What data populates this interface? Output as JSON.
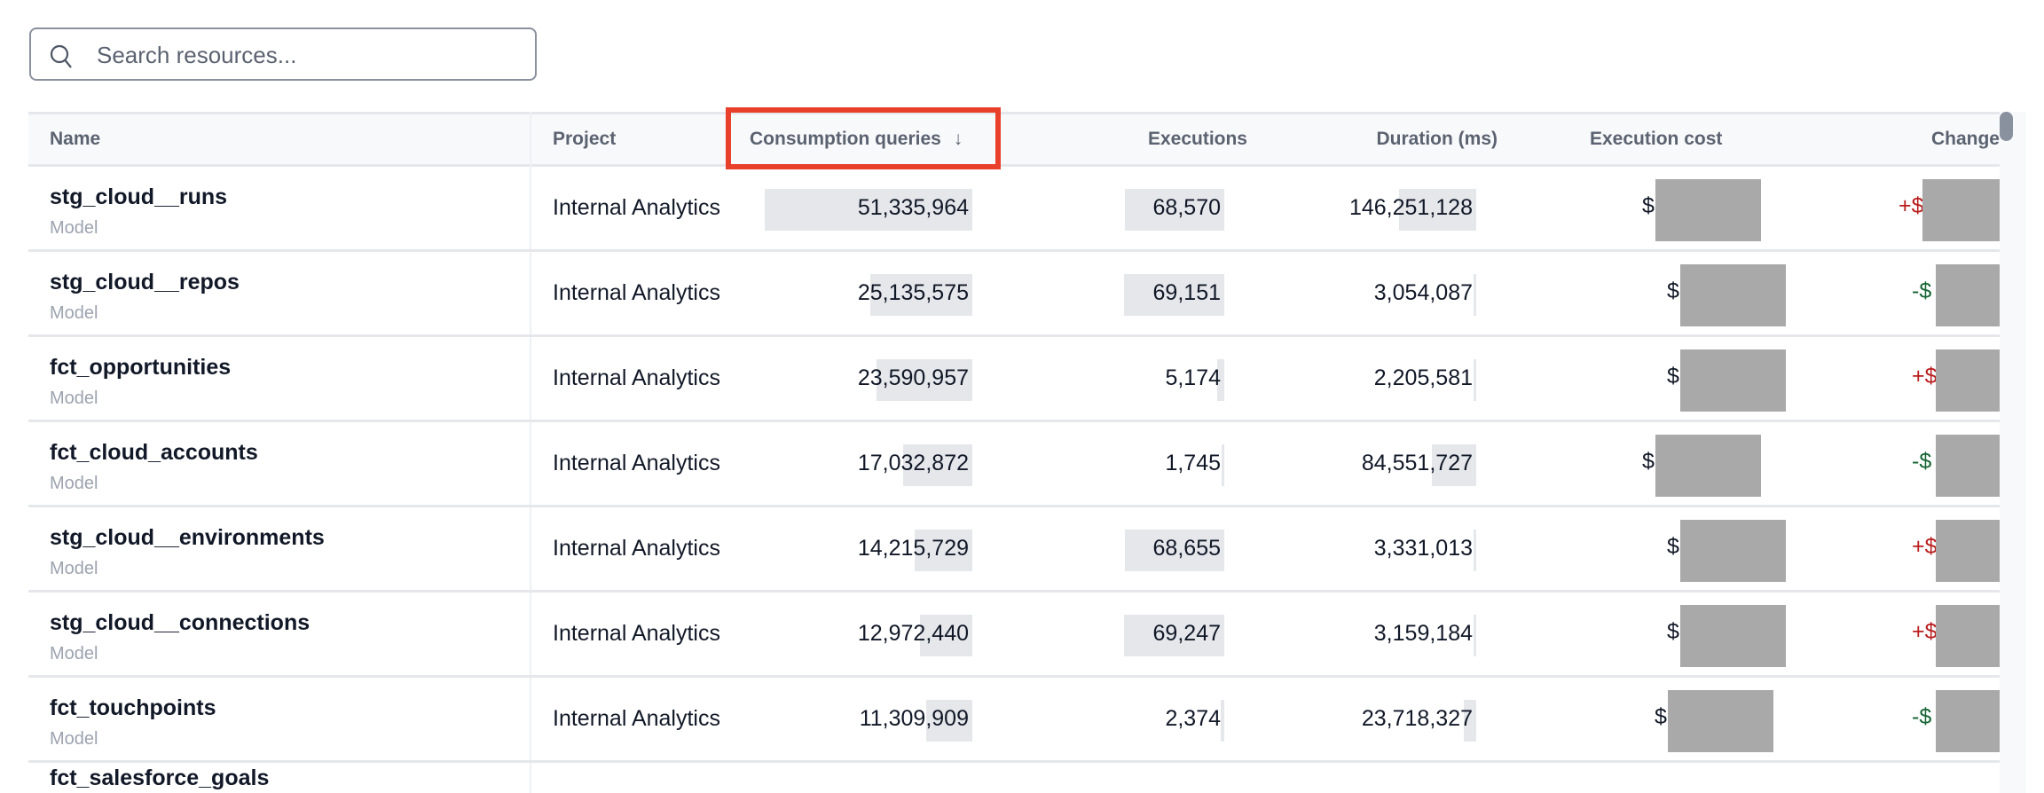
{
  "search": {
    "placeholder": "Search resources..."
  },
  "columns": {
    "name": "Name",
    "project": "Project",
    "consumption": "Consumption queries",
    "sort_icon": "↓",
    "executions": "Executions",
    "duration": "Duration (ms)",
    "cost": "Execution cost",
    "change": "Change"
  },
  "rows": [
    {
      "name": "stg_cloud__runs",
      "type": "Model",
      "project": "Internal Analytics",
      "consumption": "51,335,964",
      "consumption_value": 51335964,
      "executions": "68,570",
      "executions_value": 68570,
      "duration": "146,251,128",
      "duration_value": 146251128,
      "cost_prefix": "$",
      "change_prefix": "+$",
      "change_dir": "up"
    },
    {
      "name": "stg_cloud__repos",
      "type": "Model",
      "project": "Internal Analytics",
      "consumption": "25,135,575",
      "consumption_value": 25135575,
      "executions": "69,151",
      "executions_value": 69151,
      "duration": "3,054,087",
      "duration_value": 3054087,
      "cost_prefix": "$",
      "change_prefix": "-$",
      "change_dir": "down"
    },
    {
      "name": "fct_opportunities",
      "type": "Model",
      "project": "Internal Analytics",
      "consumption": "23,590,957",
      "consumption_value": 23590957,
      "executions": "5,174",
      "executions_value": 5174,
      "duration": "2,205,581",
      "duration_value": 2205581,
      "cost_prefix": "$",
      "change_prefix": "+$",
      "change_dir": "up"
    },
    {
      "name": "fct_cloud_accounts",
      "type": "Model",
      "project": "Internal Analytics",
      "consumption": "17,032,872",
      "consumption_value": 17032872,
      "executions": "1,745",
      "executions_value": 1745,
      "duration": "84,551,727",
      "duration_value": 84551727,
      "cost_prefix": "$",
      "change_prefix": "-$",
      "change_dir": "down"
    },
    {
      "name": "stg_cloud__environments",
      "type": "Model",
      "project": "Internal Analytics",
      "consumption": "14,215,729",
      "consumption_value": 14215729,
      "executions": "68,655",
      "executions_value": 68655,
      "duration": "3,331,013",
      "duration_value": 3331013,
      "cost_prefix": "$",
      "change_prefix": "+$",
      "change_dir": "up"
    },
    {
      "name": "stg_cloud__connections",
      "type": "Model",
      "project": "Internal Analytics",
      "consumption": "12,972,440",
      "consumption_value": 12972440,
      "executions": "69,247",
      "executions_value": 69247,
      "duration": "3,159,184",
      "duration_value": 3159184,
      "cost_prefix": "$",
      "change_prefix": "+$",
      "change_dir": "up"
    },
    {
      "name": "fct_touchpoints",
      "type": "Model",
      "project": "Internal Analytics",
      "consumption": "11,309,909",
      "consumption_value": 11309909,
      "executions": "2,374",
      "executions_value": 2374,
      "duration": "23,718,327",
      "duration_value": 23718327,
      "cost_prefix": "$",
      "change_prefix": "-$",
      "change_dir": "down"
    },
    {
      "name": "fct_salesforce_goals"
    }
  ],
  "colors": {
    "highlight": "#e8402a",
    "increase": "#b91c1c",
    "decrease": "#166534",
    "redaction": "#a9a9a9"
  }
}
